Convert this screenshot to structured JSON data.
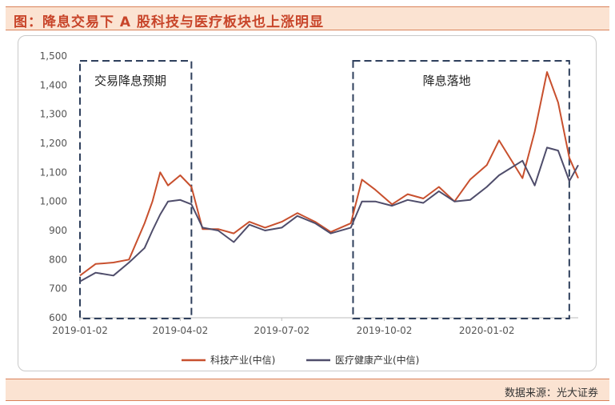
{
  "header": {
    "title": "图：降息交易下 A 股科技与医疗板块也上涨明显"
  },
  "footer": {
    "source": "数据来源：光大证券"
  },
  "colors": {
    "tech": "#c8502e",
    "health": "#4f4d6b",
    "box": "#2e3f5c",
    "accent": "#c8452a"
  },
  "chart_data": {
    "type": "line",
    "title": "",
    "xlabel": "",
    "ylabel": "",
    "ylim": [
      600,
      1500
    ],
    "yticks": [
      "600",
      "700",
      "800",
      "900",
      "1,000",
      "1,100",
      "1,200",
      "1,300",
      "1,400",
      "1,500"
    ],
    "xticks": [
      "2019-01-02",
      "2019-04-02",
      "2019-07-02",
      "2019-10-02",
      "2020-01-02"
    ],
    "x": [
      "2019-01-02",
      "2019-01-16",
      "2019-02-01",
      "2019-02-15",
      "2019-03-01",
      "2019-03-08",
      "2019-03-15",
      "2019-03-22",
      "2019-04-02",
      "2019-04-12",
      "2019-04-22",
      "2019-05-06",
      "2019-05-20",
      "2019-06-03",
      "2019-06-17",
      "2019-07-02",
      "2019-07-16",
      "2019-08-01",
      "2019-08-15",
      "2019-09-02",
      "2019-09-12",
      "2019-09-24",
      "2019-10-09",
      "2019-10-23",
      "2019-11-06",
      "2019-11-20",
      "2019-12-04",
      "2019-12-18",
      "2020-01-02",
      "2020-01-13",
      "2020-02-03",
      "2020-02-14",
      "2020-02-25",
      "2020-03-06",
      "2020-03-16",
      "2020-03-24"
    ],
    "series": [
      {
        "name": "科技产业(中信)",
        "values": [
          745,
          785,
          790,
          800,
          925,
          1000,
          1100,
          1055,
          1090,
          1050,
          905,
          905,
          890,
          930,
          910,
          930,
          960,
          930,
          895,
          925,
          1075,
          1040,
          990,
          1025,
          1010,
          1050,
          1000,
          1075,
          1125,
          1210,
          1080,
          1240,
          1445,
          1340,
          1150,
          1080
        ]
      },
      {
        "name": "医疗健康产业(中信)",
        "values": [
          725,
          755,
          745,
          790,
          840,
          900,
          955,
          1000,
          1005,
          990,
          910,
          900,
          860,
          920,
          900,
          910,
          950,
          925,
          890,
          910,
          1000,
          1000,
          985,
          1005,
          995,
          1035,
          1000,
          1005,
          1050,
          1090,
          1140,
          1055,
          1185,
          1175,
          1070,
          1125
        ]
      }
    ],
    "annotations": [
      "交易降息预期",
      "降息落地"
    ],
    "legend_position": "bottom"
  }
}
